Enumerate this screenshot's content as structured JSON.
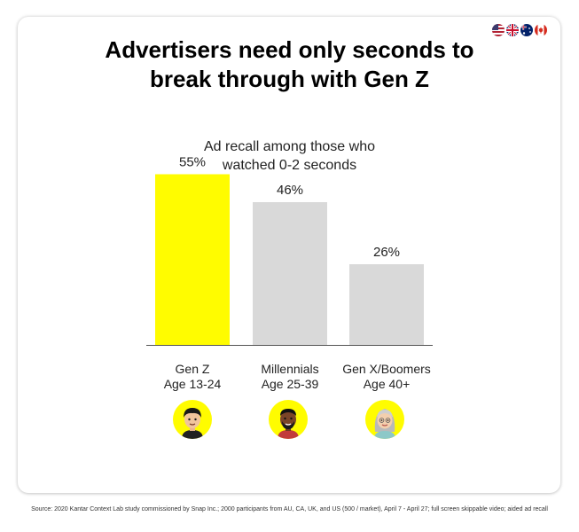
{
  "title_line1": "Advertisers need only seconds to",
  "title_line2": "break through with Gen Z",
  "flags": [
    "us-flag-icon",
    "uk-flag-icon",
    "australia-flag-icon",
    "canada-flag-icon"
  ],
  "chart_data": {
    "type": "bar",
    "subtitle_line1": "Ad recall among those who",
    "subtitle_line2": "watched 0-2 seconds",
    "categories": [
      {
        "line1": "Gen Z",
        "line2": "Age 13-24"
      },
      {
        "line1": "Millennials",
        "line2": "Age 25-39"
      },
      {
        "line1": "Gen X/Boomers",
        "line2": "Age 40+"
      }
    ],
    "values": [
      55,
      46,
      26
    ],
    "value_labels": [
      "55%",
      "46%",
      "26%"
    ],
    "colors": [
      "#fffc00",
      "#d9d9d9",
      "#d9d9d9"
    ],
    "avatars": [
      "gen-z-avatar-icon",
      "millennial-avatar-icon",
      "boomer-avatar-icon"
    ],
    "ylim": [
      0,
      60
    ],
    "grid": false,
    "legend": "none"
  },
  "source": "Source: 2020 Kantar Context Lab study commissioned by Snap Inc.; 2000 participants from AU, CA, UK, and US (500 / market), April 7 - April 27; full screen skippable video; aided ad recall"
}
